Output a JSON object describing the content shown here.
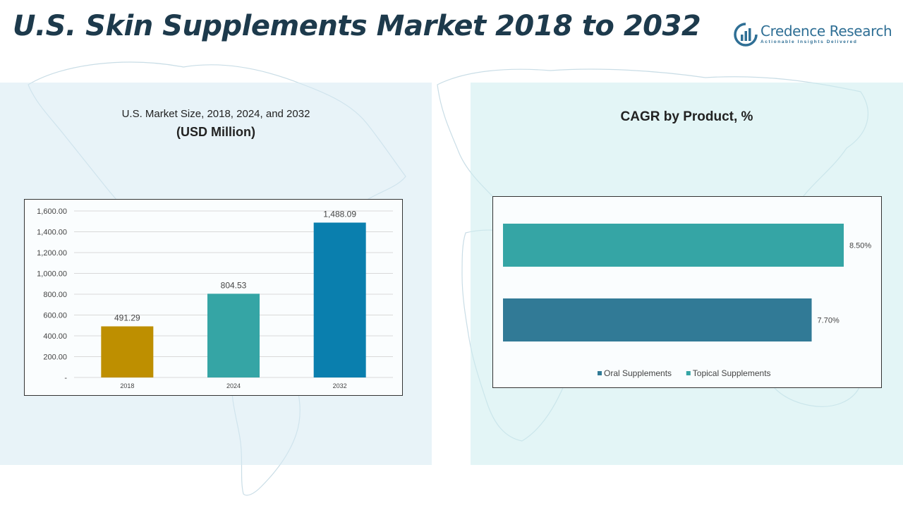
{
  "title": "U.S. Skin Supplements Market 2018 to 2032",
  "brand": {
    "name": "Credence Research",
    "tagline": "Actionable Insights Delivered",
    "color": "#2f6f95"
  },
  "left_panel": {
    "subtitle": "U.S. Market Size, 2018, 2024, and 2032",
    "unit": "(USD Million)"
  },
  "right_panel": {
    "title": "CAGR by Product, %"
  },
  "chart_data": [
    {
      "type": "bar",
      "title": "U.S. Market Size, 2018, 2024, and 2032",
      "ylabel": "(USD Million)",
      "categories": [
        "2018",
        "2024",
        "2032"
      ],
      "values": [
        491.29,
        804.53,
        1488.09
      ],
      "value_labels": [
        "491.29",
        "804.53",
        "1,488.09"
      ],
      "colors": [
        "#be8f00",
        "#35a5a5",
        "#0a7fae"
      ],
      "ylim": [
        0,
        1600
      ],
      "yticks": [
        0,
        200,
        400,
        600,
        800,
        1000,
        1200,
        1400,
        1600
      ],
      "ytick_labels": [
        "-",
        "200.00",
        "400.00",
        "600.00",
        "800.00",
        "1,000.00",
        "1,200.00",
        "1,400.00",
        "1,600.00"
      ],
      "grid": true
    },
    {
      "type": "bar",
      "orientation": "horizontal",
      "title": "CAGR by Product, %",
      "series": [
        {
          "name": "Oral Supplements",
          "value": 7.7,
          "label": "7.70%",
          "color": "#317a96"
        },
        {
          "name": "Topical Supplements",
          "value": 8.5,
          "label": "8.50%",
          "color": "#35a5a5"
        }
      ],
      "xlim": [
        0,
        8.5
      ],
      "legend": "bottom",
      "grid": false
    }
  ]
}
